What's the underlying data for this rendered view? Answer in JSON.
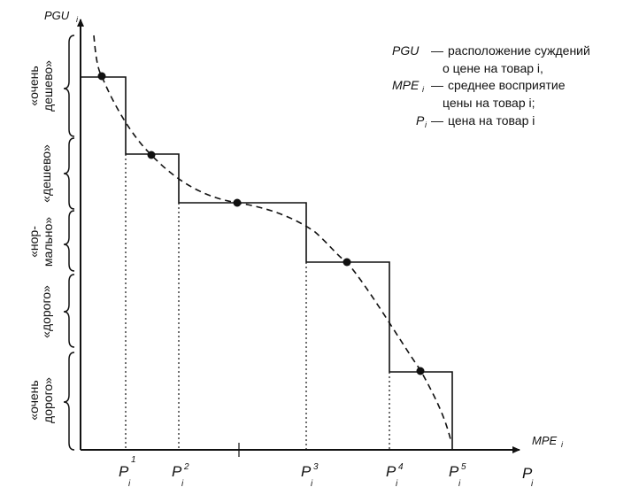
{
  "axes": {
    "y_label": "PGU",
    "y_sub": "i",
    "x_label_top": "MPE",
    "x_sub_top": "i",
    "x_label_bottom": "P",
    "x_sub_bottom": "i"
  },
  "legend": [
    {
      "term": "PGU",
      "term_sub": "",
      "dash": "—",
      "line1": "расположение суждений",
      "line2": "о цене на товар i,"
    },
    {
      "term": "MPE",
      "term_sub": "i",
      "dash": "—",
      "line1": "среднее восприятие",
      "line2": "цены на товар i;"
    },
    {
      "term": "P",
      "term_sub": "i",
      "dash": "—",
      "line1": "цена на товар i",
      "line2": ""
    }
  ],
  "categories": [
    {
      "line1": "«очень",
      "line2": "дешево»"
    },
    {
      "line1": "«дешево»",
      "line2": ""
    },
    {
      "line1": "«нор-",
      "line2": "мально»"
    },
    {
      "line1": "«дорого»",
      "line2": ""
    },
    {
      "line1": "«очень",
      "line2": "дорого»"
    }
  ],
  "price_ticks": [
    {
      "base": "P",
      "sub": "i",
      "sup": "1"
    },
    {
      "base": "P",
      "sub": "i",
      "sup": "2"
    },
    {
      "base": "P",
      "sub": "i",
      "sup": "3"
    },
    {
      "base": "P",
      "sub": "i",
      "sup": "4"
    },
    {
      "base": "P",
      "sub": "i",
      "sup": "5"
    }
  ],
  "colors": {
    "ink": "#111111",
    "background": "#ffffff"
  }
}
